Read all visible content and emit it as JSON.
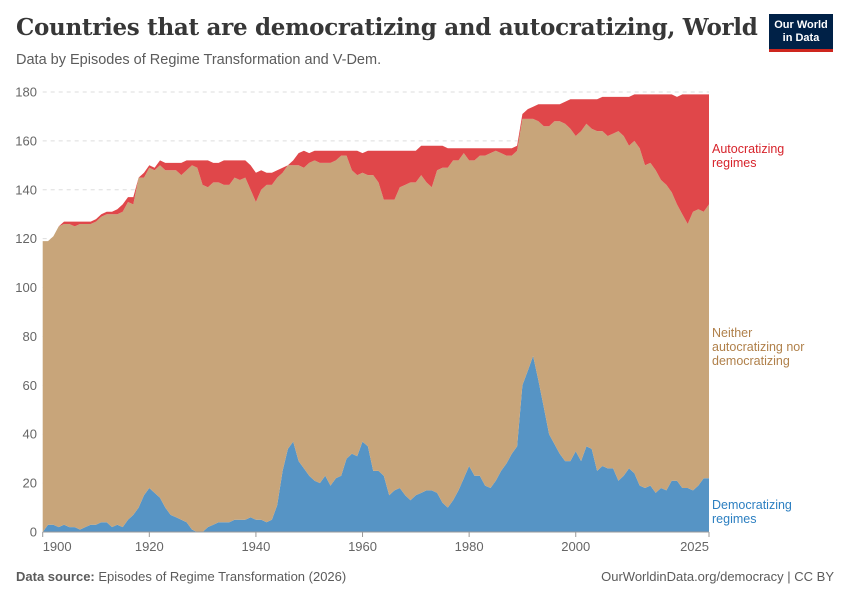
{
  "header": {
    "title": "Countries that are democratizing and autocratizing, World",
    "subtitle": "Data by Episodes of Regime Transformation and V-Dem.",
    "logo_line1": "Our World",
    "logo_line2": "in Data"
  },
  "footer": {
    "source_label": "Data source:",
    "source_text": "Episodes of Regime Transformation (2026)",
    "url": "OurWorldinData.org/democracy | CC BY"
  },
  "chart_data": {
    "type": "area",
    "stacked": true,
    "title": "Countries that are democratizing and autocratizing, World",
    "xlabel": "",
    "ylabel": "",
    "xlim": [
      1900,
      2025
    ],
    "ylim": [
      0,
      180
    ],
    "x_ticks": [
      "1900",
      "1920",
      "1940",
      "1960",
      "1980",
      "2000",
      "2025"
    ],
    "y_ticks": [
      "0",
      "20",
      "40",
      "60",
      "80",
      "100",
      "120",
      "140",
      "160",
      "180"
    ],
    "grid": "horizontal dashed",
    "legend": "right, inline labels",
    "start_year": 1900,
    "series": [
      {
        "name": "Democratizing regimes",
        "color": "#5694c5",
        "label_lines": [
          "Democratizing",
          "regimes"
        ],
        "values": [
          0,
          3,
          3,
          2,
          3,
          2,
          2,
          1,
          2,
          3,
          3,
          4,
          4,
          2,
          3,
          2,
          5,
          7,
          10,
          15,
          18,
          16,
          14,
          10,
          7,
          6,
          5,
          4,
          1,
          0,
          0,
          2,
          3,
          4,
          4,
          4,
          5,
          5,
          5,
          6,
          5,
          5,
          4,
          5,
          11,
          25,
          34,
          37,
          29,
          26,
          23,
          21,
          20,
          23,
          19,
          22,
          23,
          30,
          32,
          31,
          37,
          35,
          25,
          25,
          23,
          15,
          17,
          18,
          15,
          13,
          15,
          16,
          17,
          17,
          16,
          12,
          10,
          13,
          17,
          22,
          27,
          23,
          23,
          19,
          18,
          21,
          25,
          28,
          32,
          35,
          60,
          66,
          72,
          62,
          51,
          40,
          36,
          32,
          29,
          29,
          33,
          29,
          35,
          34,
          25,
          27,
          26,
          26,
          21,
          23,
          26,
          24,
          19,
          18,
          19,
          16,
          18,
          17,
          21,
          21,
          18,
          18,
          17,
          19,
          22,
          22
        ]
      },
      {
        "name": "Neither autocratizing nor democratizing",
        "color": "#c8a57a",
        "label_lines": [
          "Neither",
          "autocratizing nor",
          "democratizing"
        ],
        "values": [
          119,
          116,
          118,
          123,
          123,
          124,
          123,
          125,
          124,
          123,
          124,
          125,
          126,
          128,
          127,
          129,
          130,
          127,
          135,
          130,
          131,
          132,
          136,
          138,
          141,
          142,
          141,
          144,
          149,
          149,
          142,
          139,
          140,
          139,
          138,
          138,
          140,
          139,
          140,
          134,
          130,
          135,
          138,
          137,
          134,
          122,
          116,
          113,
          121,
          123,
          128,
          131,
          131,
          128,
          132,
          130,
          131,
          124,
          116,
          115,
          110,
          111,
          121,
          118,
          113,
          121,
          119,
          123,
          127,
          130,
          128,
          130,
          126,
          124,
          132,
          137,
          139,
          139,
          135,
          133,
          125,
          129,
          131,
          135,
          137,
          135,
          130,
          126,
          122,
          121,
          109,
          103,
          97,
          106,
          115,
          126,
          132,
          136,
          138,
          136,
          129,
          135,
          132,
          131,
          139,
          137,
          136,
          137,
          143,
          139,
          132,
          136,
          138,
          132,
          132,
          132,
          126,
          125,
          118,
          113,
          112,
          108,
          114,
          113,
          109,
          112
        ]
      },
      {
        "name": "Autocratizing regimes",
        "color": "#e0474a",
        "label_lines": [
          "Autocratizing",
          "regimes"
        ],
        "values": [
          0,
          0,
          0,
          0,
          1,
          1,
          2,
          1,
          1,
          1,
          1,
          1,
          1,
          1,
          2,
          3,
          2,
          3,
          0,
          2,
          1,
          1,
          2,
          3,
          3,
          3,
          5,
          4,
          2,
          3,
          10,
          11,
          8,
          8,
          10,
          10,
          7,
          8,
          7,
          10,
          12,
          8,
          5,
          5,
          3,
          2,
          0,
          2,
          5,
          7,
          4,
          4,
          5,
          5,
          5,
          4,
          2,
          2,
          8,
          10,
          8,
          10,
          10,
          13,
          20,
          20,
          20,
          15,
          14,
          13,
          13,
          12,
          15,
          17,
          10,
          9,
          8,
          5,
          5,
          2,
          5,
          5,
          3,
          3,
          2,
          1,
          2,
          3,
          3,
          2,
          2,
          4,
          5,
          7,
          9,
          9,
          7,
          7,
          9,
          12,
          15,
          13,
          10,
          12,
          13,
          14,
          16,
          15,
          14,
          16,
          20,
          19,
          22,
          29,
          28,
          31,
          35,
          37,
          40,
          44,
          49,
          53,
          48,
          47,
          48,
          45
        ]
      }
    ]
  }
}
